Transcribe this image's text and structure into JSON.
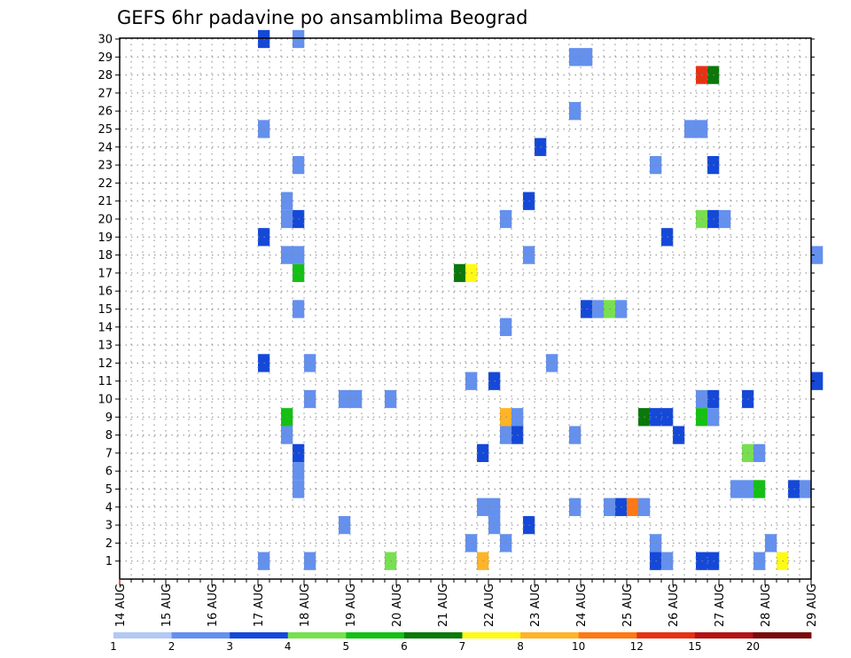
{
  "chart_data": {
    "type": "heatmap",
    "title": "GEFS 6hr padavine po ansamblima Beograd",
    "xlabel": "",
    "ylabel": "",
    "x_tick_labels": [
      "14 AUG",
      "15 AUG",
      "16 AUG",
      "17 AUG",
      "18 AUG",
      "19 AUG",
      "20 AUG",
      "21 AUG",
      "22 AUG",
      "23 AUG",
      "24 AUG",
      "25 AUG",
      "26 AUG",
      "27 AUG",
      "28 AUG",
      "29 AUG"
    ],
    "y_range": [
      1,
      30
    ],
    "x_range_days": [
      0,
      15
    ],
    "grid": true,
    "colorbar": {
      "placement": "bottom",
      "levels": [
        "1",
        "2",
        "3",
        "4",
        "5",
        "6",
        "7",
        "8",
        "10",
        "12",
        "15",
        "20"
      ],
      "colors": [
        "#b4c8f5",
        "#6490ee",
        "#1448d8",
        "#78e050",
        "#14c014",
        "#0a780a",
        "#fffa14",
        "#ffb428",
        "#ff7814",
        "#e63214",
        "#b41414",
        "#780a0a"
      ]
    },
    "cells": [
      [
        3.0,
        30,
        3
      ],
      [
        3.75,
        30,
        2
      ],
      [
        9.75,
        29,
        2
      ],
      [
        10.0,
        29,
        2
      ],
      [
        12.5,
        28,
        10
      ],
      [
        12.75,
        28,
        6
      ],
      [
        9.75,
        26,
        2
      ],
      [
        3.0,
        25,
        2
      ],
      [
        12.25,
        25,
        2
      ],
      [
        12.5,
        25,
        2
      ],
      [
        9.0,
        24,
        3
      ],
      [
        3.75,
        23,
        2
      ],
      [
        11.5,
        23,
        2
      ],
      [
        12.75,
        23,
        3
      ],
      [
        8.75,
        21,
        3
      ],
      [
        3.5,
        21,
        2
      ],
      [
        3.5,
        20,
        2
      ],
      [
        3.75,
        20,
        3
      ],
      [
        8.25,
        20,
        2
      ],
      [
        12.5,
        20,
        4
      ],
      [
        12.75,
        20,
        3
      ],
      [
        13.0,
        20,
        2
      ],
      [
        3.0,
        19,
        3
      ],
      [
        11.75,
        19,
        3
      ],
      [
        3.5,
        18,
        2
      ],
      [
        3.75,
        18,
        2
      ],
      [
        8.75,
        18,
        2
      ],
      [
        15.0,
        18,
        2
      ],
      [
        3.75,
        17,
        5
      ],
      [
        7.25,
        17,
        6
      ],
      [
        7.5,
        17,
        7
      ],
      [
        3.75,
        15,
        2
      ],
      [
        10.0,
        15,
        3
      ],
      [
        10.25,
        15,
        2
      ],
      [
        10.5,
        15,
        4
      ],
      [
        10.75,
        15,
        2
      ],
      [
        8.25,
        14,
        2
      ],
      [
        3.0,
        12,
        3
      ],
      [
        4.0,
        12,
        2
      ],
      [
        9.25,
        12,
        2
      ],
      [
        7.5,
        11,
        2
      ],
      [
        8.0,
        11,
        3
      ],
      [
        15.0,
        11,
        3
      ],
      [
        4.0,
        10,
        2
      ],
      [
        4.75,
        10,
        2
      ],
      [
        5.0,
        10,
        2
      ],
      [
        5.75,
        10,
        2
      ],
      [
        12.5,
        10,
        2
      ],
      [
        12.75,
        10,
        3
      ],
      [
        13.5,
        10,
        3
      ],
      [
        3.5,
        9,
        5
      ],
      [
        8.25,
        9,
        8
      ],
      [
        8.5,
        9,
        2
      ],
      [
        11.25,
        9,
        6
      ],
      [
        11.5,
        9,
        3
      ],
      [
        11.75,
        9,
        3
      ],
      [
        12.5,
        9,
        5
      ],
      [
        12.75,
        9,
        2
      ],
      [
        3.5,
        8,
        2
      ],
      [
        8.25,
        8,
        2
      ],
      [
        8.5,
        8,
        3
      ],
      [
        9.75,
        8,
        2
      ],
      [
        12.0,
        8,
        3
      ],
      [
        3.75,
        7,
        3
      ],
      [
        7.75,
        7,
        3
      ],
      [
        13.5,
        7,
        4
      ],
      [
        13.75,
        7,
        2
      ],
      [
        3.75,
        6,
        2
      ],
      [
        3.75,
        5,
        2
      ],
      [
        13.25,
        5,
        2
      ],
      [
        13.5,
        5,
        2
      ],
      [
        13.75,
        5,
        5
      ],
      [
        14.5,
        5,
        3
      ],
      [
        14.75,
        5,
        2
      ],
      [
        7.75,
        4,
        2
      ],
      [
        8.0,
        4,
        2
      ],
      [
        9.75,
        4,
        2
      ],
      [
        10.5,
        4,
        2
      ],
      [
        10.75,
        4,
        3
      ],
      [
        11.0,
        4,
        9
      ],
      [
        11.25,
        4,
        2
      ],
      [
        4.75,
        3,
        2
      ],
      [
        8.0,
        3,
        2
      ],
      [
        8.75,
        3,
        3
      ],
      [
        7.5,
        2,
        2
      ],
      [
        8.25,
        2,
        2
      ],
      [
        11.5,
        2,
        2
      ],
      [
        14.0,
        2,
        2
      ],
      [
        3.0,
        1,
        2
      ],
      [
        4.0,
        1,
        2
      ],
      [
        5.75,
        1,
        4
      ],
      [
        7.75,
        1,
        8
      ],
      [
        11.5,
        1,
        3
      ],
      [
        11.75,
        1,
        2
      ],
      [
        12.5,
        1,
        3
      ],
      [
        12.75,
        1,
        3
      ],
      [
        13.75,
        1,
        2
      ],
      [
        14.25,
        1,
        7
      ]
    ]
  }
}
